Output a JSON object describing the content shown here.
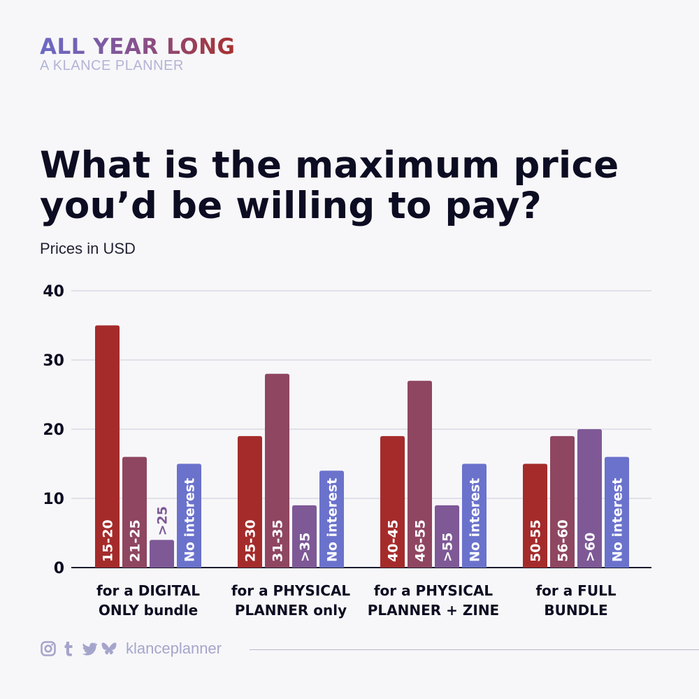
{
  "brand": {
    "title": "ALL YEAR LONG",
    "subtitle": "A KLANCE PLANNER"
  },
  "headline": {
    "line1": "What is the maximum price",
    "line2": "you’d be willing to pay?"
  },
  "subhead": "Prices in USD",
  "footer": {
    "handle": "klanceplanner",
    "icons": [
      "instagram-icon",
      "tumblr-icon",
      "twitter-icon",
      "bluesky-icon"
    ]
  },
  "colors": {
    "tier1": "#a52b2b",
    "tier2": "#8f4660",
    "tier3": "#7e5996",
    "no_interest": "#6a72cc",
    "axis_text": "#0c0c22",
    "grid": "#c8c8dc"
  },
  "chart_data": {
    "type": "bar",
    "title": "What is the maximum price you’d be willing to pay?",
    "subtitle": "Prices in USD",
    "ylim": [
      0,
      40
    ],
    "yticks": [
      0,
      10,
      20,
      30,
      40
    ],
    "grid": true,
    "groups": [
      {
        "label_lines": [
          "for a DIGITAL",
          "ONLY bundle"
        ],
        "bars": [
          {
            "label": "15-20",
            "value": 35,
            "color_key": "tier1"
          },
          {
            "label": "21-25",
            "value": 16,
            "color_key": "tier2"
          },
          {
            "label": ">25",
            "value": 4,
            "color_key": "tier3"
          },
          {
            "label": "No interest",
            "value": 15,
            "color_key": "no_interest"
          }
        ]
      },
      {
        "label_lines": [
          "for a PHYSICAL",
          "PLANNER only"
        ],
        "bars": [
          {
            "label": "25-30",
            "value": 19,
            "color_key": "tier1"
          },
          {
            "label": "31-35",
            "value": 28,
            "color_key": "tier2"
          },
          {
            "label": ">35",
            "value": 9,
            "color_key": "tier3"
          },
          {
            "label": "No interest",
            "value": 14,
            "color_key": "no_interest"
          }
        ]
      },
      {
        "label_lines": [
          "for a PHYSICAL",
          "PLANNER + ZINE"
        ],
        "bars": [
          {
            "label": "40-45",
            "value": 19,
            "color_key": "tier1"
          },
          {
            "label": "46-55",
            "value": 27,
            "color_key": "tier2"
          },
          {
            "label": ">55",
            "value": 9,
            "color_key": "tier3"
          },
          {
            "label": "No interest",
            "value": 15,
            "color_key": "no_interest"
          }
        ]
      },
      {
        "label_lines": [
          "for a FULL",
          "BUNDLE"
        ],
        "bars": [
          {
            "label": "50-55",
            "value": 15,
            "color_key": "tier1"
          },
          {
            "label": "56-60",
            "value": 19,
            "color_key": "tier2"
          },
          {
            "label": ">60",
            "value": 20,
            "color_key": "tier3"
          },
          {
            "label": "No interest",
            "value": 16,
            "color_key": "no_interest"
          }
        ]
      }
    ]
  }
}
